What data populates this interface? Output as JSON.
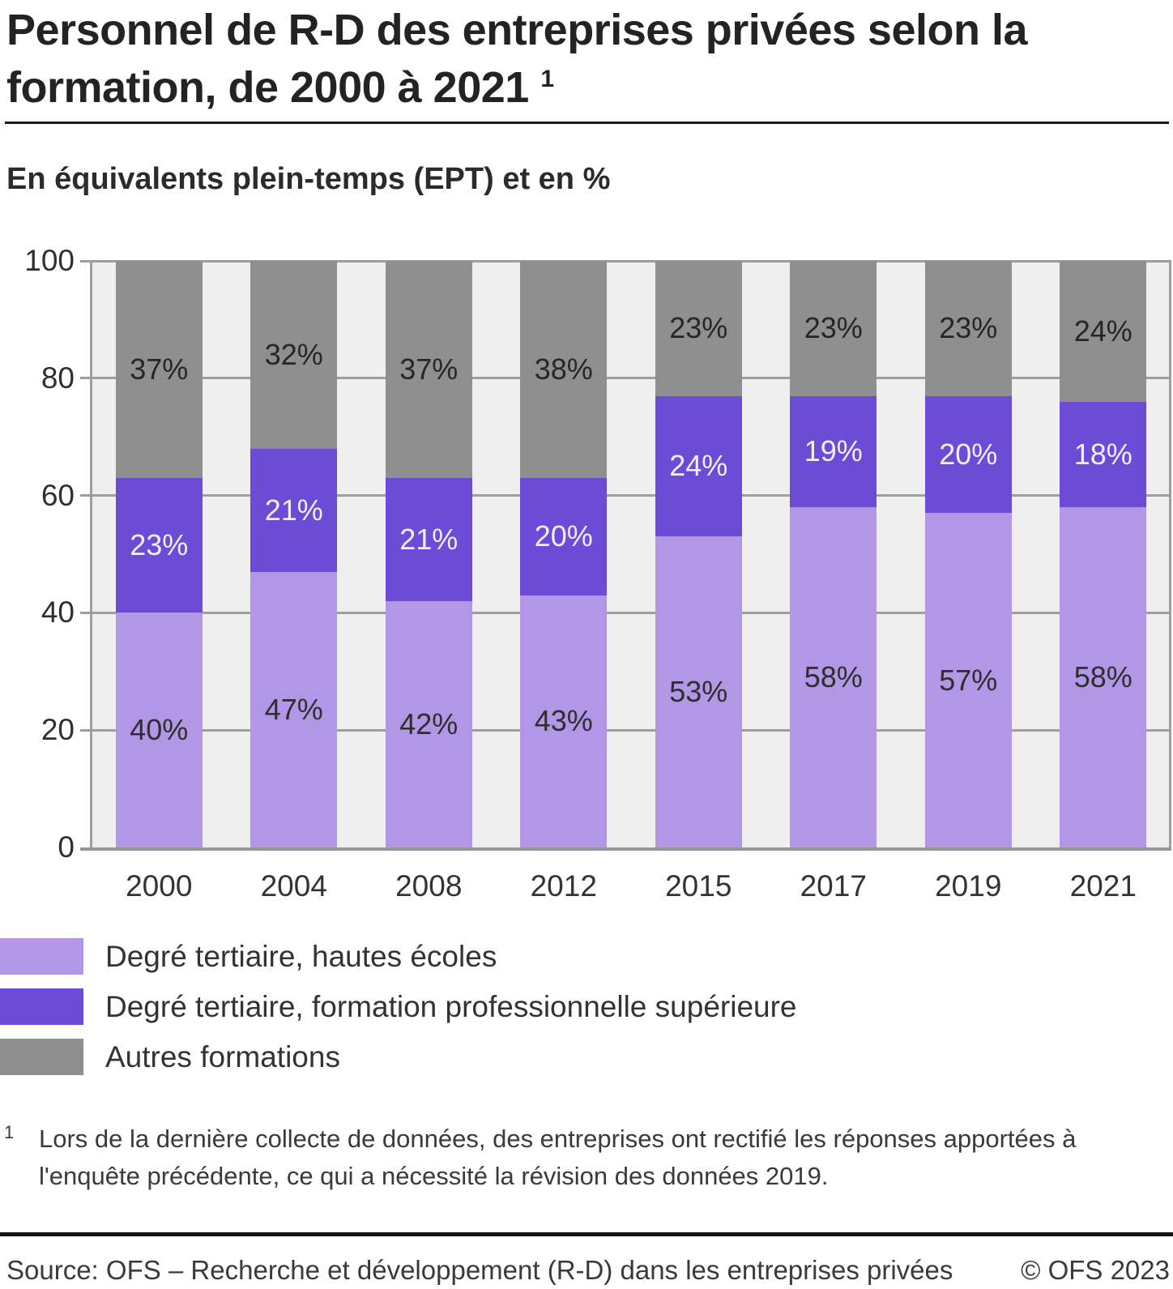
{
  "title": {
    "line1": "Personnel de R-D des entreprises privées selon la",
    "line2": "formation, de 2000 à 2021",
    "footnote_marker": "1"
  },
  "subtitle": "En équivalents plein-temps (EPT) et en %",
  "chart_data": {
    "type": "bar",
    "stacked": true,
    "unit": "percent of full-time equivalents (EPT)",
    "categories": [
      "2000",
      "2004",
      "2008",
      "2012",
      "2015",
      "2017",
      "2019",
      "2021"
    ],
    "series": [
      {
        "name": "Degré tertiaire, hautes écoles",
        "color": "#b197e6",
        "label_color": "#2e2e2e",
        "values": [
          40,
          47,
          42,
          43,
          53,
          58,
          57,
          58
        ]
      },
      {
        "name": "Degré tertiaire, formation professionnelle supérieure",
        "color": "#6c4bd7",
        "label_color": "#f2eefb",
        "values": [
          23,
          21,
          21,
          20,
          24,
          19,
          20,
          18
        ]
      },
      {
        "name": "Autres formations",
        "color": "#8f8f8f",
        "label_color": "#262626",
        "values": [
          37,
          32,
          37,
          38,
          23,
          23,
          23,
          24
        ]
      }
    ],
    "value_suffix": "%",
    "ylim": [
      0,
      100
    ],
    "yticks": [
      0,
      20,
      40,
      60,
      80,
      100
    ],
    "grid": true,
    "legend_position": "bottom",
    "plot_background": "#efefef",
    "gridline_color": "#9e9e9e"
  },
  "footnote": {
    "marker": "1",
    "text": "Lors de la dernière collecte de données, des entreprises ont rectifié les réponses apportées à l'enquête précédente, ce qui a nécessité la révision des données 2019."
  },
  "source": {
    "left": "Source: OFS – Recherche et développement (R-D) dans les entreprises privées",
    "right": "© OFS 2023"
  }
}
